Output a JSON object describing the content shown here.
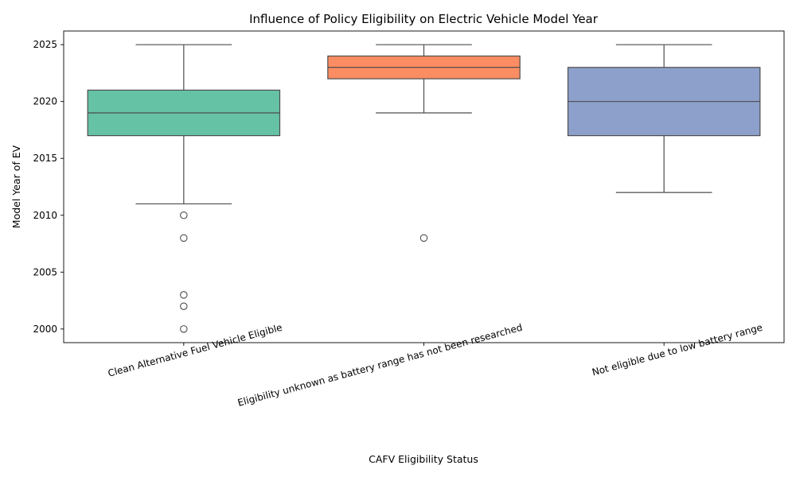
{
  "chart_data": {
    "type": "box",
    "title": "Influence of Policy Eligibility on Electric Vehicle Model Year",
    "xlabel": "CAFV Eligibility Status",
    "ylabel": "Model Year of EV",
    "ylim": [
      1998.8,
      2026.2
    ],
    "yticks": [
      "2000",
      "2005",
      "2010",
      "2015",
      "2020",
      "2025"
    ],
    "grid": false,
    "categories": [
      "Clean Alternative Fuel Vehicle Eligible",
      "Eligibility unknown as battery range has not been researched",
      "Not eligible due to low battery range"
    ],
    "boxes": [
      {
        "q1": 2017,
        "median": 2019,
        "q3": 2021,
        "whisker_low": 2011,
        "whisker_high": 2025,
        "outliers": [
          2010,
          2008,
          2003,
          2002,
          2000
        ],
        "color": "#66c2a5"
      },
      {
        "q1": 2022,
        "median": 2023,
        "q3": 2024,
        "whisker_low": 2019,
        "whisker_high": 2025,
        "outliers": [
          2008
        ],
        "color": "#fc8d62"
      },
      {
        "q1": 2017,
        "median": 2020,
        "q3": 2023,
        "whisker_low": 2012,
        "whisker_high": 2025,
        "outliers": [],
        "color": "#8da0cb"
      }
    ]
  }
}
